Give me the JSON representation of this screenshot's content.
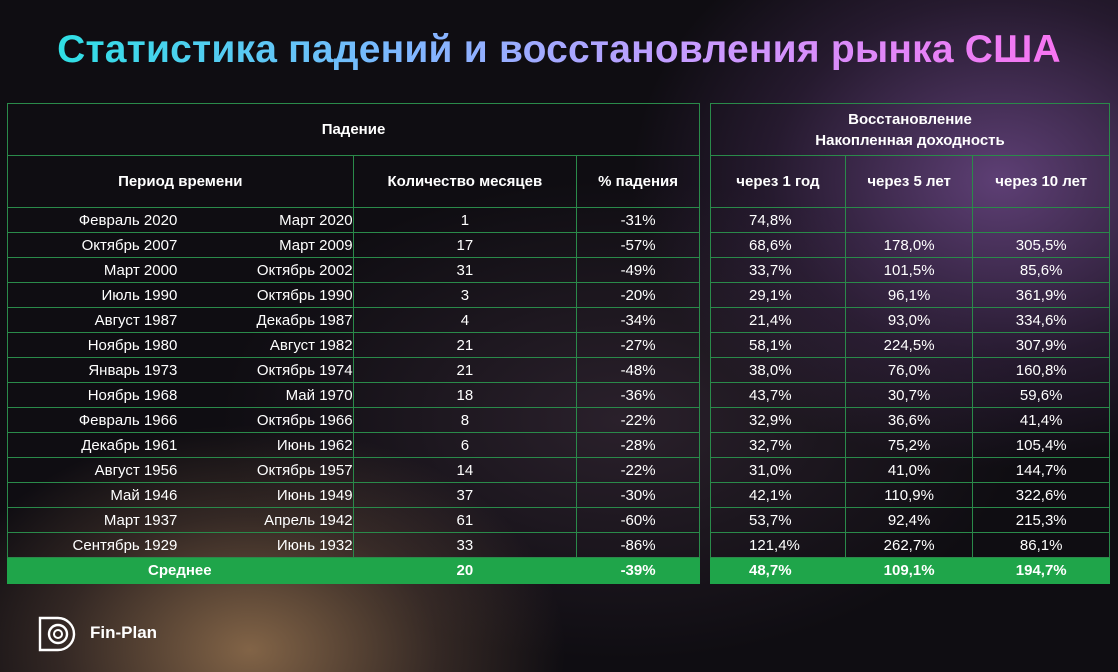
{
  "title": "Статистика падений и восстановления рынка США",
  "left_table": {
    "group_header": "Падение",
    "col_period": "Период времени",
    "col_months": "Количество месяцев",
    "col_pct": "% падения"
  },
  "right_table": {
    "group_header_line1": "Восстановление",
    "group_header_line2": "Накопленная доходность",
    "col_1y": "через 1 год",
    "col_5y": "через 5 лет",
    "col_10y": "через 10 лет"
  },
  "rows": [
    {
      "start": "Февраль 2020",
      "end": "Март 2020",
      "months": "1",
      "drop": "-31%",
      "y1": "74,8%",
      "y5": "",
      "y10": ""
    },
    {
      "start": "Октябрь 2007",
      "end": "Март 2009",
      "months": "17",
      "drop": "-57%",
      "y1": "68,6%",
      "y5": "178,0%",
      "y10": "305,5%"
    },
    {
      "start": "Март 2000",
      "end": "Октябрь 2002",
      "months": "31",
      "drop": "-49%",
      "y1": "33,7%",
      "y5": "101,5%",
      "y10": "85,6%"
    },
    {
      "start": "Июль 1990",
      "end": "Октябрь 1990",
      "months": "3",
      "drop": "-20%",
      "y1": "29,1%",
      "y5": "96,1%",
      "y10": "361,9%"
    },
    {
      "start": "Август 1987",
      "end": "Декабрь 1987",
      "months": "4",
      "drop": "-34%",
      "y1": "21,4%",
      "y5": "93,0%",
      "y10": "334,6%"
    },
    {
      "start": "Ноябрь 1980",
      "end": "Август 1982",
      "months": "21",
      "drop": "-27%",
      "y1": "58,1%",
      "y5": "224,5%",
      "y10": "307,9%"
    },
    {
      "start": "Январь 1973",
      "end": "Октябрь 1974",
      "months": "21",
      "drop": "-48%",
      "y1": "38,0%",
      "y5": "76,0%",
      "y10": "160,8%"
    },
    {
      "start": "Ноябрь 1968",
      "end": "Май 1970",
      "months": "18",
      "drop": "-36%",
      "y1": "43,7%",
      "y5": "30,7%",
      "y10": "59,6%"
    },
    {
      "start": "Февраль 1966",
      "end": "Октябрь 1966",
      "months": "8",
      "drop": "-22%",
      "y1": "32,9%",
      "y5": "36,6%",
      "y10": "41,4%"
    },
    {
      "start": "Декабрь 1961",
      "end": "Июнь 1962",
      "months": "6",
      "drop": "-28%",
      "y1": "32,7%",
      "y5": "75,2%",
      "y10": "105,4%"
    },
    {
      "start": "Август 1956",
      "end": "Октябрь 1957",
      "months": "14",
      "drop": "-22%",
      "y1": "31,0%",
      "y5": "41,0%",
      "y10": "144,7%"
    },
    {
      "start": "Май 1946",
      "end": "Июнь 1949",
      "months": "37",
      "drop": "-30%",
      "y1": "42,1%",
      "y5": "110,9%",
      "y10": "322,6%"
    },
    {
      "start": "Март 1937",
      "end": "Апрель 1942",
      "months": "61",
      "drop": "-60%",
      "y1": "53,7%",
      "y5": "92,4%",
      "y10": "215,3%"
    },
    {
      "start": "Сентябрь 1929",
      "end": "Июнь 1932",
      "months": "33",
      "drop": "-86%",
      "y1": "121,4%",
      "y5": "262,7%",
      "y10": "86,1%"
    }
  ],
  "average": {
    "label": "Среднее",
    "months": "20",
    "drop": "-39%",
    "y1": "48,7%",
    "y5": "109,1%",
    "y10": "194,7%"
  },
  "brand": "Fin-Plan",
  "colors": {
    "accent_green": "#1fa54a",
    "border_green": "#2a8a4a"
  }
}
